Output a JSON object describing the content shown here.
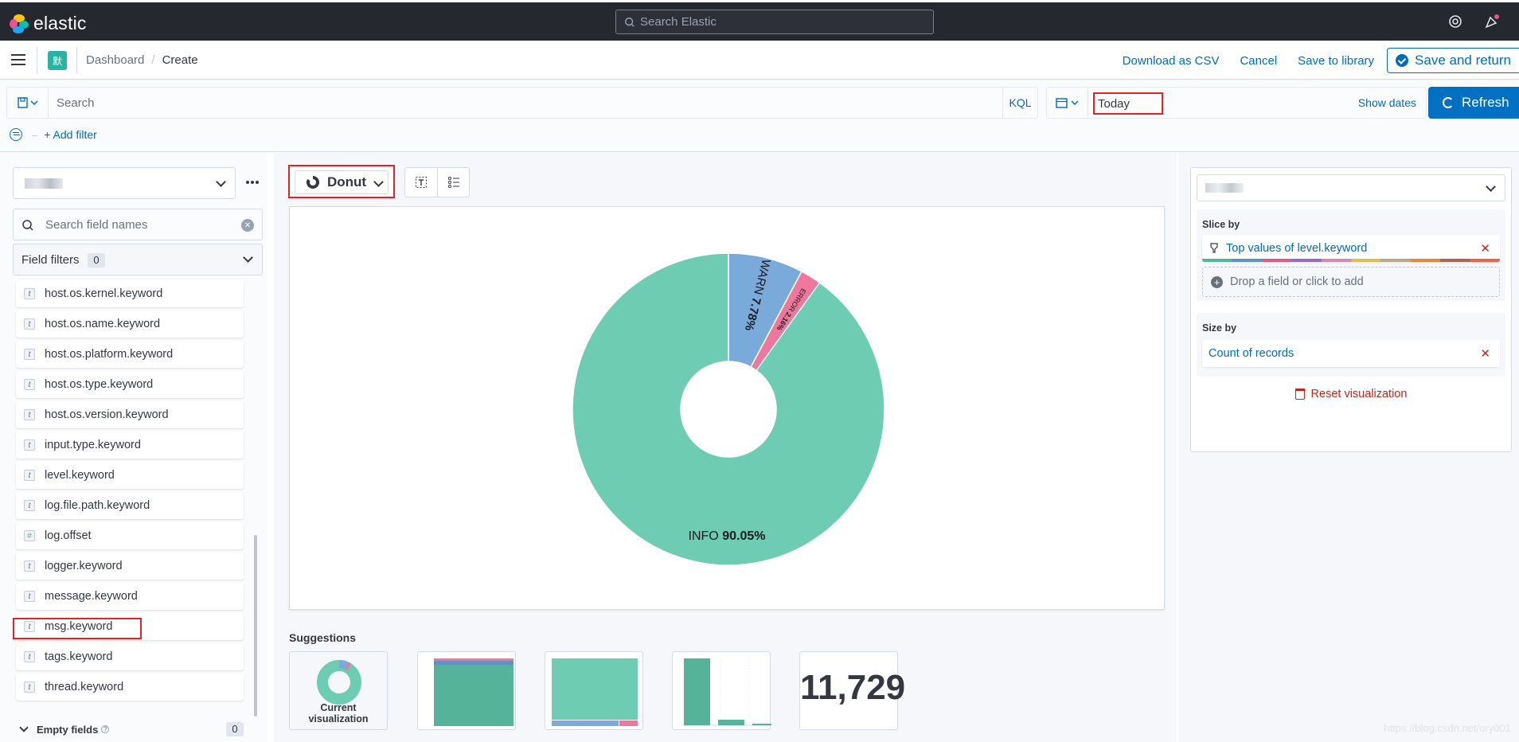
{
  "app": {
    "brand": "elastic",
    "search_placeholder": "Search Elastic"
  },
  "header": {
    "space_avatar": "默",
    "breadcrumbs": [
      "Dashboard",
      "Create"
    ],
    "actions": {
      "download_csv": "Download as CSV",
      "cancel": "Cancel",
      "save_to_library": "Save to library",
      "save_and_return": "Save and return"
    }
  },
  "query": {
    "placeholder": "Search",
    "language": "KQL",
    "date": "Today",
    "show_dates": "Show dates",
    "refresh": "Refresh",
    "add_filter": "+ Add filter"
  },
  "fields_panel": {
    "search_placeholder": "Search field names",
    "filters_label": "Field filters",
    "filters_count": "0",
    "fields": [
      {
        "name": "host.os.kernel.keyword",
        "type": "t"
      },
      {
        "name": "host.os.name.keyword",
        "type": "t"
      },
      {
        "name": "host.os.platform.keyword",
        "type": "t"
      },
      {
        "name": "host.os.type.keyword",
        "type": "t"
      },
      {
        "name": "host.os.version.keyword",
        "type": "t"
      },
      {
        "name": "input.type.keyword",
        "type": "t"
      },
      {
        "name": "level.keyword",
        "type": "t"
      },
      {
        "name": "log.file.path.keyword",
        "type": "t"
      },
      {
        "name": "log.offset",
        "type": "#"
      },
      {
        "name": "logger.keyword",
        "type": "t"
      },
      {
        "name": "message.keyword",
        "type": "t"
      },
      {
        "name": "msg.keyword",
        "type": "t"
      },
      {
        "name": "tags.keyword",
        "type": "t"
      },
      {
        "name": "thread.keyword",
        "type": "t"
      }
    ],
    "empty_fields_label": "Empty fields",
    "empty_fields_count": "0"
  },
  "workspace": {
    "chart_type": "Donut",
    "suggestions_title": "Suggestions",
    "current_caption": "Current visualization",
    "metric_value": "11,729"
  },
  "chart_data": {
    "type": "pie",
    "donut": true,
    "slices": [
      {
        "label": "WARN",
        "value": 7.78,
        "display": "7.78%",
        "color": "#79aad9"
      },
      {
        "label": "ERROR",
        "value": 2.16,
        "display": "2.16%",
        "color": "#ee789d"
      },
      {
        "label": "INFO",
        "value": 90.05,
        "display": "90.05%",
        "color": "#6dccb1"
      }
    ]
  },
  "config_panel": {
    "slice_by_label": "Slice by",
    "slice_by_value": "Top values of level.keyword",
    "drop_hint": "Drop a field or click to add",
    "size_by_label": "Size by",
    "size_by_value": "Count of records",
    "reset": "Reset visualization",
    "palette": [
      "#54b399",
      "#6092c0",
      "#d36086",
      "#9170b8",
      "#ca8eae",
      "#d6bf57",
      "#b9a888",
      "#da8b45",
      "#aa6556",
      "#e7664c"
    ]
  },
  "watermark": "https://blog.csdn.net/ory001"
}
